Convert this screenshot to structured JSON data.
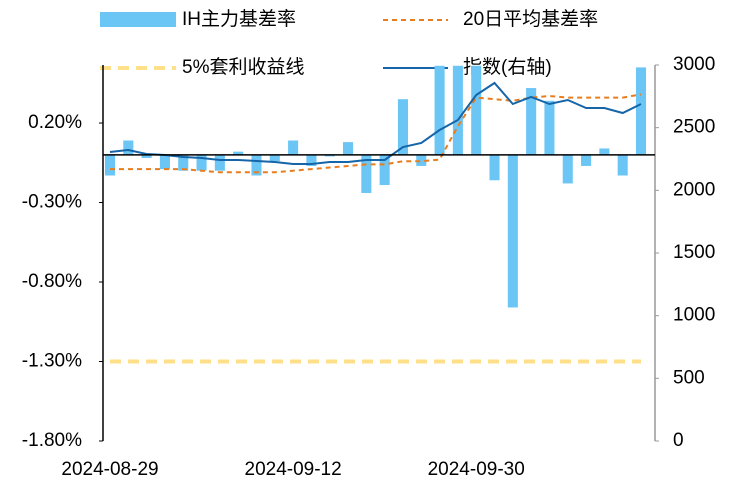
{
  "chart_data": {
    "type": "bar",
    "categories": [
      "2024-08-29",
      null,
      null,
      null,
      null,
      null,
      null,
      null,
      null,
      null,
      "2024-09-12",
      null,
      null,
      null,
      null,
      null,
      null,
      null,
      null,
      null,
      "2024-09-30",
      null,
      null,
      null,
      null,
      null,
      null,
      null,
      null,
      null
    ],
    "series": [
      {
        "name": "IH主力基差率",
        "type": "bar",
        "color": "#6cc6f5",
        "values": [
          -0.13,
          0.09,
          -0.02,
          -0.09,
          -0.1,
          -0.1,
          -0.1,
          0.02,
          -0.13,
          -0.04,
          0.09,
          -0.07,
          -0.01,
          0.08,
          -0.24,
          -0.19,
          0.35,
          -0.07,
          0.56,
          0.56,
          0.56,
          -0.16,
          -0.96,
          0.42,
          0.34,
          -0.18,
          -0.07,
          0.04,
          -0.13,
          0.55
        ]
      },
      {
        "name": "20日平均基差率",
        "type": "line",
        "line_style": "dashed",
        "color": "#e87d1e",
        "values": [
          -0.09,
          -0.09,
          -0.09,
          -0.09,
          -0.09,
          -0.1,
          -0.11,
          -0.11,
          -0.11,
          -0.11,
          -0.1,
          -0.09,
          -0.08,
          -0.07,
          -0.06,
          -0.06,
          -0.04,
          -0.04,
          -0.03,
          0.18,
          0.36,
          0.35,
          0.34,
          0.36,
          0.37,
          0.36,
          0.36,
          0.36,
          0.36,
          0.38
        ]
      },
      {
        "name": "5%套利收益线",
        "type": "line",
        "line_style": "thick-dashed",
        "color": "#ffe08a",
        "values": [
          -1.3,
          -1.3,
          -1.3,
          -1.3,
          -1.3,
          -1.3,
          -1.3,
          -1.3,
          -1.3,
          -1.3,
          -1.3,
          -1.3,
          -1.3,
          -1.3,
          -1.3,
          -1.3,
          -1.3,
          -1.3,
          -1.3,
          -1.3,
          -1.3,
          -1.3,
          -1.3,
          -1.3,
          -1.3,
          -1.3,
          -1.3,
          -1.3,
          -1.3,
          -1.3
        ]
      },
      {
        "name": "指数(右轴)",
        "type": "line",
        "line_style": "solid",
        "color": "#1565a8",
        "axis": "y2",
        "values": [
          2306,
          2322,
          2290,
          2282,
          2266,
          2258,
          2242,
          2242,
          2234,
          2226,
          2210,
          2210,
          2226,
          2226,
          2242,
          2242,
          2346,
          2378,
          2481,
          2561,
          2761,
          2856,
          2689,
          2745,
          2689,
          2721,
          2657,
          2657,
          2617,
          2689
        ]
      }
    ],
    "ylim": [
      -1.8,
      0.565
    ],
    "yticks": [
      {
        "value": 0.2,
        "label": "0.20%"
      },
      {
        "value": -0.3,
        "label": "-0.30%"
      },
      {
        "value": -0.8,
        "label": "-0.80%"
      },
      {
        "value": -1.3,
        "label": "-1.30%"
      },
      {
        "value": -1.8,
        "label": "-1.80%"
      }
    ],
    "y2lim": [
      0,
      3000
    ],
    "y2ticks": [
      0,
      500,
      1000,
      1500,
      2000,
      2500,
      3000
    ]
  }
}
